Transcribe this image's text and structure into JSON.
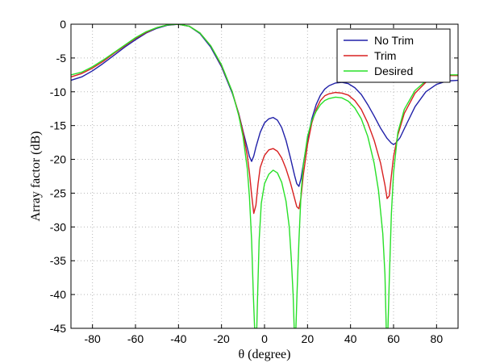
{
  "chart_data": {
    "type": "line",
    "title": "",
    "xlabel": "θ (degree)",
    "ylabel": "Array factor (dB)",
    "xlim": [
      -90,
      90
    ],
    "ylim": [
      -45,
      0
    ],
    "xticks": [
      -80,
      -60,
      -40,
      -20,
      0,
      20,
      40,
      60,
      80
    ],
    "yticks": [
      0,
      -5,
      -10,
      -15,
      -20,
      -25,
      -30,
      -35,
      -40,
      -45
    ],
    "xtick_labels": [
      "-80",
      "-60",
      "-40",
      "-20",
      "0",
      "20",
      "40",
      "60",
      "80"
    ],
    "ytick_labels": [
      "0",
      "-5",
      "-10",
      "-15",
      "-20",
      "-25",
      "-30",
      "-35",
      "-40",
      "-45"
    ],
    "grid": true,
    "legend_position": "top-right",
    "series": [
      {
        "name": "No Trim",
        "color": "#2020a8",
        "points": [
          [
            -90,
            -8.3
          ],
          [
            -85,
            -7.8
          ],
          [
            -80,
            -6.9
          ],
          [
            -75,
            -5.8
          ],
          [
            -70,
            -4.6
          ],
          [
            -65,
            -3.4
          ],
          [
            -60,
            -2.3
          ],
          [
            -55,
            -1.3
          ],
          [
            -50,
            -0.6
          ],
          [
            -45,
            -0.15
          ],
          [
            -40,
            0
          ],
          [
            -35,
            -0.3
          ],
          [
            -30,
            -1.4
          ],
          [
            -25,
            -3.4
          ],
          [
            -20,
            -6.3
          ],
          [
            -15,
            -10.2
          ],
          [
            -12,
            -13.2
          ],
          [
            -10,
            -15.8
          ],
          [
            -8,
            -18.3
          ],
          [
            -7,
            -19.6
          ],
          [
            -6,
            -20.3
          ],
          [
            -5,
            -19.5
          ],
          [
            -4,
            -18.2
          ],
          [
            -2,
            -16.0
          ],
          [
            0,
            -14.6
          ],
          [
            2,
            -14.0
          ],
          [
            4,
            -13.8
          ],
          [
            6,
            -14.2
          ],
          [
            8,
            -15.3
          ],
          [
            10,
            -17.2
          ],
          [
            12,
            -19.7
          ],
          [
            14,
            -22.4
          ],
          [
            15,
            -23.6
          ],
          [
            16,
            -24.0
          ],
          [
            17,
            -22.8
          ],
          [
            18,
            -20.8
          ],
          [
            20,
            -17.0
          ],
          [
            22,
            -14.0
          ],
          [
            24,
            -11.9
          ],
          [
            26,
            -10.5
          ],
          [
            28,
            -9.6
          ],
          [
            30,
            -9.1
          ],
          [
            33,
            -8.7
          ],
          [
            36,
            -8.6
          ],
          [
            39,
            -8.8
          ],
          [
            42,
            -9.4
          ],
          [
            45,
            -10.4
          ],
          [
            48,
            -11.9
          ],
          [
            51,
            -13.6
          ],
          [
            54,
            -15.4
          ],
          [
            57,
            -16.9
          ],
          [
            59,
            -17.6
          ],
          [
            60,
            -17.8
          ],
          [
            61,
            -17.6
          ],
          [
            63,
            -16.8
          ],
          [
            66,
            -14.8
          ],
          [
            70,
            -12.2
          ],
          [
            75,
            -10.0
          ],
          [
            80,
            -8.9
          ],
          [
            85,
            -8.4
          ],
          [
            90,
            -8.3
          ]
        ]
      },
      {
        "name": "Trim",
        "color": "#d82020",
        "points": [
          [
            -90,
            -7.8
          ],
          [
            -85,
            -7.3
          ],
          [
            -80,
            -6.5
          ],
          [
            -75,
            -5.5
          ],
          [
            -70,
            -4.3
          ],
          [
            -65,
            -3.2
          ],
          [
            -60,
            -2.1
          ],
          [
            -55,
            -1.2
          ],
          [
            -50,
            -0.5
          ],
          [
            -45,
            -0.1
          ],
          [
            -40,
            0
          ],
          [
            -35,
            -0.3
          ],
          [
            -30,
            -1.3
          ],
          [
            -25,
            -3.2
          ],
          [
            -20,
            -6.1
          ],
          [
            -15,
            -10.0
          ],
          [
            -12,
            -13.3
          ],
          [
            -10,
            -16.0
          ],
          [
            -8,
            -19.5
          ],
          [
            -7,
            -22.0
          ],
          [
            -6,
            -25.2
          ],
          [
            -5,
            -28.0
          ],
          [
            -4,
            -26.8
          ],
          [
            -3,
            -23.6
          ],
          [
            -2,
            -21.2
          ],
          [
            0,
            -19.4
          ],
          [
            2,
            -18.6
          ],
          [
            4,
            -18.4
          ],
          [
            6,
            -18.8
          ],
          [
            8,
            -19.8
          ],
          [
            10,
            -21.4
          ],
          [
            12,
            -23.4
          ],
          [
            14,
            -25.8
          ],
          [
            15,
            -27.0
          ],
          [
            16,
            -27.3
          ],
          [
            17,
            -25.6
          ],
          [
            18,
            -22.4
          ],
          [
            20,
            -17.8
          ],
          [
            22,
            -14.6
          ],
          [
            24,
            -12.6
          ],
          [
            26,
            -11.3
          ],
          [
            28,
            -10.6
          ],
          [
            30,
            -10.3
          ],
          [
            33,
            -10.1
          ],
          [
            36,
            -10.2
          ],
          [
            39,
            -10.5
          ],
          [
            42,
            -11.3
          ],
          [
            45,
            -12.6
          ],
          [
            48,
            -14.6
          ],
          [
            51,
            -17.2
          ],
          [
            54,
            -20.6
          ],
          [
            56,
            -23.8
          ],
          [
            57,
            -25.8
          ],
          [
            58,
            -25.4
          ],
          [
            59,
            -22.4
          ],
          [
            60,
            -19.6
          ],
          [
            62,
            -16.4
          ],
          [
            65,
            -13.2
          ],
          [
            70,
            -10.2
          ],
          [
            75,
            -8.6
          ],
          [
            80,
            -7.9
          ],
          [
            85,
            -7.6
          ],
          [
            90,
            -7.6
          ]
        ]
      },
      {
        "name": "Desired",
        "color": "#28e028",
        "points": [
          [
            -90,
            -7.5
          ],
          [
            -85,
            -7.1
          ],
          [
            -80,
            -6.3
          ],
          [
            -75,
            -5.3
          ],
          [
            -70,
            -4.2
          ],
          [
            -65,
            -3.1
          ],
          [
            -60,
            -2.0
          ],
          [
            -55,
            -1.1
          ],
          [
            -50,
            -0.5
          ],
          [
            -45,
            -0.1
          ],
          [
            -40,
            0
          ],
          [
            -35,
            -0.3
          ],
          [
            -30,
            -1.3
          ],
          [
            -25,
            -3.2
          ],
          [
            -20,
            -6.0
          ],
          [
            -15,
            -10.0
          ],
          [
            -12,
            -13.5
          ],
          [
            -10,
            -16.6
          ],
          [
            -8,
            -21.4
          ],
          [
            -7,
            -25.6
          ],
          [
            -6,
            -32.0
          ],
          [
            -5.2,
            -40.0
          ],
          [
            -4.6,
            -45
          ],
          [
            -3.6,
            -45
          ],
          [
            -3.2,
            -40.0
          ],
          [
            -2.5,
            -32.0
          ],
          [
            -1.5,
            -26.5
          ],
          [
            0,
            -23.6
          ],
          [
            2,
            -22.2
          ],
          [
            4,
            -21.6
          ],
          [
            6,
            -22.0
          ],
          [
            8,
            -23.4
          ],
          [
            10,
            -26.2
          ],
          [
            11.5,
            -30.0
          ],
          [
            12.5,
            -35.0
          ],
          [
            13.3,
            -40.0
          ],
          [
            13.8,
            -45
          ],
          [
            14.6,
            -45
          ],
          [
            15.1,
            -40.0
          ],
          [
            16,
            -32.0
          ],
          [
            17,
            -25.0
          ],
          [
            18,
            -21.0
          ],
          [
            20,
            -16.6
          ],
          [
            22,
            -14.3
          ],
          [
            24,
            -12.9
          ],
          [
            26,
            -11.9
          ],
          [
            28,
            -11.3
          ],
          [
            30,
            -11.0
          ],
          [
            33,
            -10.8
          ],
          [
            36,
            -10.9
          ],
          [
            39,
            -11.4
          ],
          [
            42,
            -12.4
          ],
          [
            45,
            -14.0
          ],
          [
            48,
            -16.6
          ],
          [
            51,
            -20.6
          ],
          [
            53,
            -24.6
          ],
          [
            55,
            -31.0
          ],
          [
            56,
            -37.0
          ],
          [
            56.6,
            -45
          ],
          [
            57.4,
            -45
          ],
          [
            58,
            -38.0
          ],
          [
            59,
            -28.0
          ],
          [
            60,
            -22.0
          ],
          [
            62,
            -16.0
          ],
          [
            65,
            -12.6
          ],
          [
            70,
            -9.8
          ],
          [
            75,
            -8.4
          ],
          [
            80,
            -7.8
          ],
          [
            85,
            -7.5
          ],
          [
            90,
            -7.5
          ]
        ]
      }
    ]
  }
}
